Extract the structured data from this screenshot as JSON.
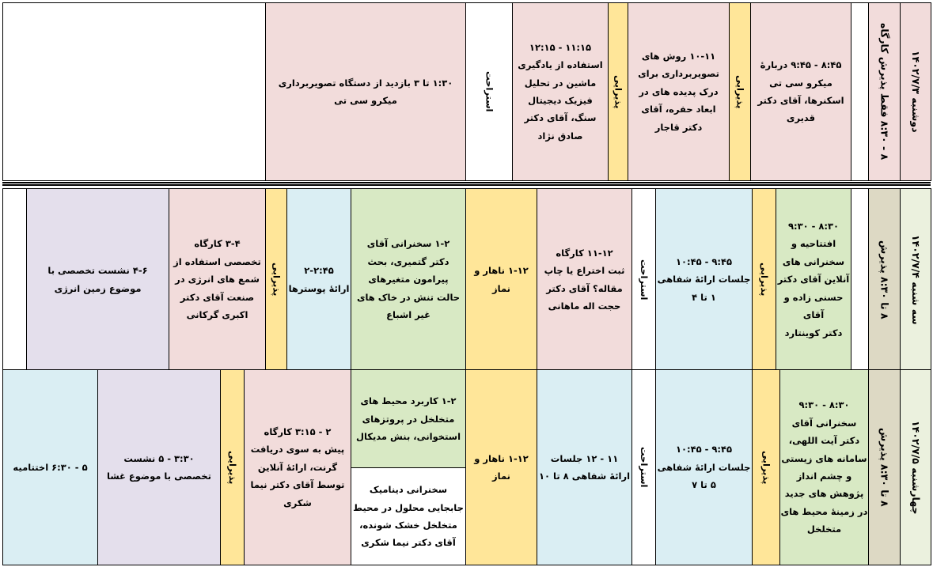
{
  "days": [
    {
      "date": "دوشنبه ۱۴۰۲/۷/۳",
      "reception": "۸ - ۸:۳۰ فقط پذیرش کارگاه",
      "cells": [
        {
          "lines": [
            "۸:۴۵ - ۹:۴۵ دربارهٔ",
            "میکرو سی تی",
            "اسکنرها، آقای دکتر",
            "قدیری"
          ]
        },
        {
          "lines": [
            "پذیرایی"
          ]
        },
        {
          "lines": [
            "۱۰-۱۱ روش های",
            "تصویربرداری برای",
            "درک پدیده های در",
            "ابعاد حفره، آقای",
            "دکتر قاجار"
          ]
        },
        {
          "lines": [
            "پذیرایی"
          ]
        },
        {
          "lines": [
            "۱۱:۱۵ - ۱۲:۱۵",
            "استفاده از یادگیری",
            "ماشین در تحلیل",
            "فیزیک دیجیتال",
            "سنگ، آقای دکتر",
            "صادق نژاد"
          ]
        },
        {
          "lines": [
            "استراحت"
          ]
        },
        {
          "lines": [
            "۱:۳۰ تا ۳ بازدید از دستگاه تصویربرداری",
            "میکرو سی تی"
          ]
        }
      ]
    },
    {
      "date": "سه شنبه ۱۴۰۲/۷/۴",
      "reception": "۸ تا ۸:۳۰ پذیرش",
      "cells": [
        {
          "lines": [
            "۸:۳۰ - ۹:۳۰",
            "افتتاحیه و",
            "سخنرانی های",
            "آنلاین آقای دکتر",
            "حسنی زاده و آقای",
            "دکتر کوینتارد"
          ]
        },
        {
          "lines": [
            "پذیرایی"
          ]
        },
        {
          "lines": [
            "۹:۴۵ - ۱۰:۴۵",
            "جلسات ارائهٔ شفاهی",
            "۱ تا ۴"
          ]
        },
        {
          "lines": [
            "استراحت"
          ]
        },
        {
          "lines": [
            "۱۱-۱۲ کارگاه",
            "ثبت اختراع یا چاپ",
            "مقاله؟ آقای دکتر",
            "حجت اله ماهانی"
          ]
        },
        {
          "lines": [
            "۱-۱۲ ناهار و",
            "نماز"
          ]
        },
        {
          "lines": [
            "۱-۲ سخنرانی آقای",
            "دکتر گتمیری، بحث",
            "پیرامون متغیرهای",
            "حالت تنش در خاک های",
            "غیر اشباع"
          ]
        },
        {
          "lines": [
            "۲-۲:۴۵",
            "ارائهٔ پوسترها"
          ]
        },
        {
          "lines": [
            "پذیرایی"
          ]
        },
        {
          "lines": [
            "۳-۴ کارگاه",
            "تخصصی استفاده از",
            "شمع های انرژی در",
            "صنعت آقای دکتر",
            "اکبری گرکانی"
          ]
        },
        {
          "lines": [
            "۴-۶ نشست تخصصی با",
            "موضوع زمین انرژی"
          ]
        }
      ]
    },
    {
      "date": "چهارشنبه ۱۴۰۲/۷/۵",
      "reception": "۸ تا ۸:۳۰ پذیرش",
      "cells": [
        {
          "lines": [
            "۸:۳۰ - ۹:۳۰",
            "سخنرانی آقای",
            "دکتر آیت اللهی،",
            "سامانه های زیستی",
            "و چشم انداز",
            "پژوهش های جدید",
            "در زمینهٔ محیط های",
            "متخلخل"
          ]
        },
        {
          "lines": [
            "پذیرایی"
          ]
        },
        {
          "lines": [
            "۹:۴۵ - ۱۰:۴۵",
            "جلسات ارائهٔ شفاهی",
            "۵ تا ۷"
          ]
        },
        {
          "lines": [
            "استراحت"
          ]
        },
        {
          "lines": [
            "۱۱ - ۱۲ جلسات",
            "ارائهٔ شفاهی ۸ تا ۱۰"
          ]
        },
        {
          "lines": [
            "۱-۱۲ ناهار و",
            "نماز"
          ]
        },
        {
          "lines": [
            "۱-۲ کاربرد محیط های",
            "متخلخل در پروتزهای",
            "استخوانی، بنش مدیکال"
          ]
        },
        {
          "lines": [
            "سخنرانی دینامیک",
            "جابجایی محلول در محیط",
            "متخلخل خشک شونده،",
            "آقای دکتر نیما شکری"
          ]
        },
        {
          "lines": [
            "۲ - ۳:۱۵ کارگاه",
            "پیش به سوی دریافت",
            "گرنت، ارائهٔ آنلاین",
            "توسط آقای دکتر نیما",
            "شکری"
          ]
        },
        {
          "lines": [
            "پذیرایی"
          ]
        },
        {
          "lines": [
            "۳:۳۰ - ۵ نشست",
            "تخصصی با موضوع غشا"
          ]
        },
        {
          "lines": [
            "۵ - ۶:۳۰ اختتامیه"
          ]
        }
      ]
    }
  ]
}
